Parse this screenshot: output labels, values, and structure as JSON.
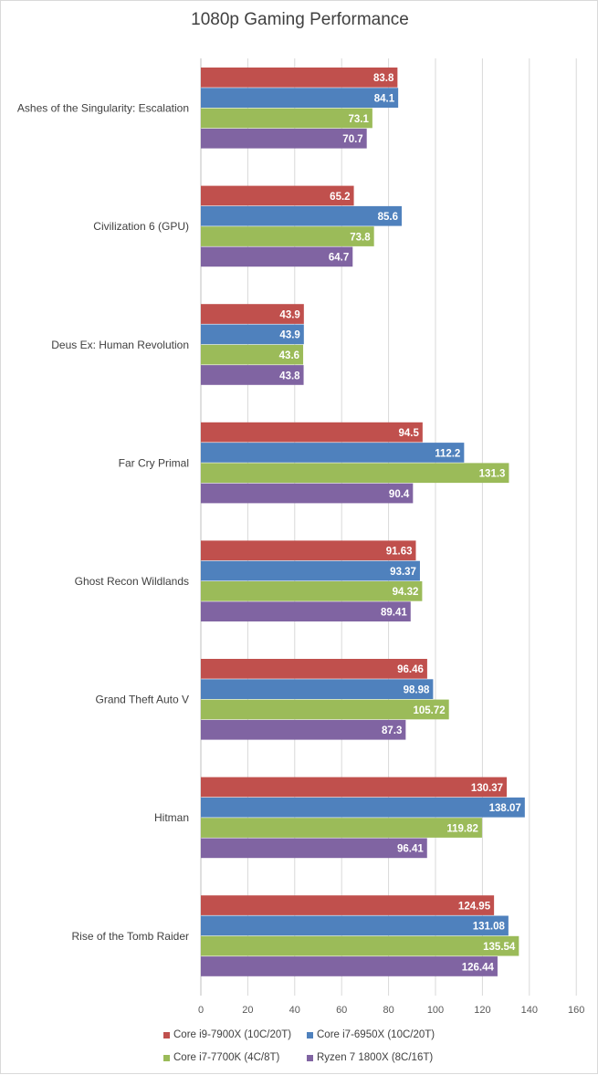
{
  "chart_data": {
    "type": "bar",
    "orientation": "horizontal",
    "title": "1080p Gaming Performance",
    "xlabel": "",
    "ylabel": "",
    "xlim": [
      0,
      160
    ],
    "xticks": [
      0,
      20,
      40,
      60,
      80,
      100,
      120,
      140,
      160
    ],
    "grid": "vertical",
    "legend_position": "bottom",
    "categories": [
      "Ashes of the Singularity: Escalation",
      "Civilization 6 (GPU)",
      "Deus Ex: Human Revolution",
      "Far Cry Primal",
      "Ghost Recon Wildlands",
      "Grand Theft Auto V",
      "Hitman",
      "Rise of the Tomb Raider"
    ],
    "series": [
      {
        "name": "Core i9-7900X (10C/20T)",
        "color": "#c0504d",
        "values": [
          83.8,
          65.2,
          43.9,
          94.5,
          91.63,
          96.46,
          130.37,
          124.95
        ],
        "labels": [
          "83.8",
          "65.2",
          "43.9",
          "94.5",
          "91.63",
          "96.46",
          "130.37",
          "124.95"
        ]
      },
      {
        "name": "Core i7-6950X (10C/20T)",
        "color": "#4f81bd",
        "values": [
          84.1,
          85.6,
          43.9,
          112.2,
          93.37,
          98.98,
          138.07,
          131.08
        ],
        "labels": [
          "84.1",
          "85.6",
          "43.9",
          "112.2",
          "93.37",
          "98.98",
          "138.07",
          "131.08"
        ]
      },
      {
        "name": "Core i7-7700K (4C/8T)",
        "color": "#9bbb59",
        "values": [
          73.1,
          73.8,
          43.6,
          131.3,
          94.32,
          105.72,
          119.82,
          135.54
        ],
        "labels": [
          "73.1",
          "73.8",
          "43.6",
          "131.3",
          "94.32",
          "105.72",
          "119.82",
          "135.54"
        ]
      },
      {
        "name": "Ryzen 7 1800X (8C/16T)",
        "color": "#8064a2",
        "values": [
          70.7,
          64.7,
          43.8,
          90.4,
          89.41,
          87.3,
          96.41,
          126.44
        ],
        "labels": [
          "70.7",
          "64.7",
          "43.8",
          "90.4",
          "89.41",
          "87.3",
          "96.41",
          "126.44"
        ]
      }
    ]
  }
}
